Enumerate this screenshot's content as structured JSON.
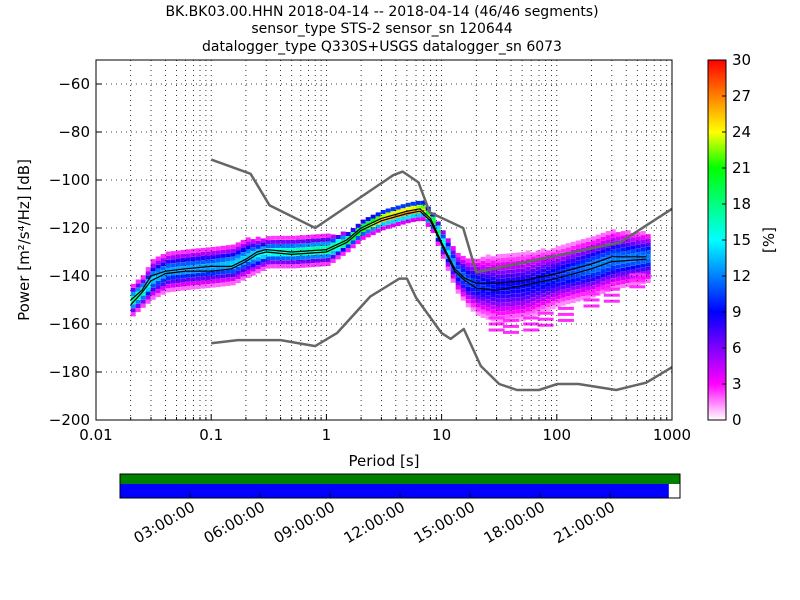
{
  "chart_data": {
    "type": "heatmap",
    "title": {
      "line1": "BK.BK03.00.HHN   2018-04-14 -- 2018-04-14  (46/46 segments)",
      "line2": "sensor_type STS-2 sensor_sn 120644",
      "line3": "datalogger_type Q330S+USGS datalogger_sn 6073"
    },
    "xlabel": "Period [s]",
    "ylabel": "Power [m²/s⁴/Hz] [dB]",
    "xscale": "log",
    "xlim": [
      0.01,
      1000
    ],
    "ylim": [
      -200,
      -50
    ],
    "x_ticks": [
      {
        "value": 0.01,
        "label": "0.01"
      },
      {
        "value": 0.1,
        "label": "0.1"
      },
      {
        "value": 1,
        "label": "1"
      },
      {
        "value": 10,
        "label": "10"
      },
      {
        "value": 100,
        "label": "100"
      },
      {
        "value": 1000,
        "label": "1000"
      }
    ],
    "y_ticks": [
      {
        "value": -60,
        "label": "−60"
      },
      {
        "value": -80,
        "label": "−80"
      },
      {
        "value": -100,
        "label": "−100"
      },
      {
        "value": -120,
        "label": "−120"
      },
      {
        "value": -140,
        "label": "−140"
      },
      {
        "value": -160,
        "label": "−160"
      },
      {
        "value": -180,
        "label": "−180"
      },
      {
        "value": -200,
        "label": "−200"
      }
    ],
    "grid": true,
    "colorbar": {
      "label": "[%]",
      "range": [
        0,
        30
      ],
      "ticks": [
        {
          "value": 0,
          "label": "0"
        },
        {
          "value": 3,
          "label": "3"
        },
        {
          "value": 6,
          "label": "6"
        },
        {
          "value": 9,
          "label": "9"
        },
        {
          "value": 12,
          "label": "12"
        },
        {
          "value": 15,
          "label": "15"
        },
        {
          "value": 18,
          "label": "18"
        },
        {
          "value": 21,
          "label": "21"
        },
        {
          "value": 24,
          "label": "24"
        },
        {
          "value": 27,
          "label": "27"
        },
        {
          "value": 30,
          "label": "30"
        }
      ],
      "colors": [
        "#ffffff",
        "#ff00ff",
        "#8000ff",
        "#0000ff",
        "#0080ff",
        "#00ffff",
        "#00ff80",
        "#00ff00",
        "#ffff00",
        "#ff8000",
        "#ff0000"
      ]
    },
    "noise_models": {
      "high": [
        {
          "period": 0.1,
          "db": -91.5
        },
        {
          "period": 0.22,
          "db": -97.4
        },
        {
          "period": 0.32,
          "db": -110.5
        },
        {
          "period": 0.8,
          "db": -120
        },
        {
          "period": 3.8,
          "db": -98
        },
        {
          "period": 4.6,
          "db": -96.5
        },
        {
          "period": 6.3,
          "db": -101
        },
        {
          "period": 7.9,
          "db": -113.5
        },
        {
          "period": 15.4,
          "db": -120
        },
        {
          "period": 20,
          "db": -138.5
        },
        {
          "period": 354.8,
          "db": -126
        },
        {
          "period": 1000,
          "db": -112
        }
      ],
      "low": [
        {
          "period": 0.1,
          "db": -168
        },
        {
          "period": 0.17,
          "db": -166.7
        },
        {
          "period": 0.4,
          "db": -166.7
        },
        {
          "period": 0.8,
          "db": -169.2
        },
        {
          "period": 1.24,
          "db": -163.7
        },
        {
          "period": 2.4,
          "db": -148.6
        },
        {
          "period": 4.3,
          "db": -141.1
        },
        {
          "period": 5,
          "db": -141.1
        },
        {
          "period": 6,
          "db": -149
        },
        {
          "period": 10,
          "db": -163.8
        },
        {
          "period": 12,
          "db": -166.2
        },
        {
          "period": 15.6,
          "db": -162.1
        },
        {
          "period": 21.9,
          "db": -177.5
        },
        {
          "period": 31.6,
          "db": -185
        },
        {
          "period": 45,
          "db": -187.5
        },
        {
          "period": 70,
          "db": -187.5
        },
        {
          "period": 101,
          "db": -185
        },
        {
          "period": 154,
          "db": -185
        },
        {
          "period": 328,
          "db": -187.5
        },
        {
          "period": 600,
          "db": -184.4
        },
        {
          "period": 1000,
          "db": -178
        }
      ]
    },
    "mean_curve": [
      {
        "period": 0.02,
        "db": -152
      },
      {
        "period": 0.025,
        "db": -147
      },
      {
        "period": 0.03,
        "db": -142
      },
      {
        "period": 0.04,
        "db": -139
      },
      {
        "period": 0.06,
        "db": -138
      },
      {
        "period": 0.1,
        "db": -138
      },
      {
        "period": 0.15,
        "db": -137
      },
      {
        "period": 0.2,
        "db": -134
      },
      {
        "period": 0.25,
        "db": -131
      },
      {
        "period": 0.3,
        "db": -130
      },
      {
        "period": 0.5,
        "db": -131
      },
      {
        "period": 1,
        "db": -130
      },
      {
        "period": 1.5,
        "db": -126
      },
      {
        "period": 2,
        "db": -121
      },
      {
        "period": 3,
        "db": -117
      },
      {
        "period": 5,
        "db": -114
      },
      {
        "period": 6.5,
        "db": -113
      },
      {
        "period": 8,
        "db": -117
      },
      {
        "period": 10,
        "db": -127
      },
      {
        "period": 13,
        "db": -138
      },
      {
        "period": 16,
        "db": -142
      },
      {
        "period": 20,
        "db": -145
      },
      {
        "period": 30,
        "db": -146
      },
      {
        "period": 50,
        "db": -144
      },
      {
        "period": 100,
        "db": -141
      },
      {
        "period": 200,
        "db": -137
      },
      {
        "period": 300,
        "db": -134
      },
      {
        "period": 600,
        "db": -133
      }
    ],
    "mode_curve": [
      {
        "period": 0.02,
        "db": -150
      },
      {
        "period": 0.025,
        "db": -146
      },
      {
        "period": 0.03,
        "db": -140
      },
      {
        "period": 0.04,
        "db": -138
      },
      {
        "period": 0.06,
        "db": -137
      },
      {
        "period": 0.1,
        "db": -136
      },
      {
        "period": 0.15,
        "db": -136
      },
      {
        "period": 0.2,
        "db": -133
      },
      {
        "period": 0.25,
        "db": -130
      },
      {
        "period": 0.3,
        "db": -129
      },
      {
        "period": 0.5,
        "db": -130
      },
      {
        "period": 1,
        "db": -129
      },
      {
        "period": 1.5,
        "db": -125
      },
      {
        "period": 2,
        "db": -120
      },
      {
        "period": 3,
        "db": -116
      },
      {
        "period": 5,
        "db": -113
      },
      {
        "period": 6.5,
        "db": -112
      },
      {
        "period": 8,
        "db": -116
      },
      {
        "period": 10,
        "db": -126
      },
      {
        "period": 13,
        "db": -137
      },
      {
        "period": 16,
        "db": -141
      },
      {
        "period": 20,
        "db": -143
      },
      {
        "period": 30,
        "db": -143
      },
      {
        "period": 50,
        "db": -142
      },
      {
        "period": 100,
        "db": -139
      },
      {
        "period": 200,
        "db": -135
      },
      {
        "period": 300,
        "db": -132
      },
      {
        "period": 600,
        "db": -132
      }
    ],
    "density_bands": [
      {
        "period": 0.02,
        "center": -150,
        "spread": 3,
        "peak": 18
      },
      {
        "period": 0.025,
        "center": -146,
        "spread": 3,
        "peak": 17
      },
      {
        "period": 0.03,
        "center": -141,
        "spread": 4,
        "peak": 14
      },
      {
        "period": 0.04,
        "center": -138,
        "spread": 4,
        "peak": 13
      },
      {
        "period": 0.06,
        "center": -137,
        "spread": 4,
        "peak": 13
      },
      {
        "period": 0.1,
        "center": -136,
        "spread": 4,
        "peak": 13
      },
      {
        "period": 0.15,
        "center": -135,
        "spread": 4,
        "peak": 14
      },
      {
        "period": 0.2,
        "center": -132,
        "spread": 4,
        "peak": 14
      },
      {
        "period": 0.3,
        "center": -130,
        "spread": 3,
        "peak": 16
      },
      {
        "period": 0.5,
        "center": -130,
        "spread": 3,
        "peak": 17
      },
      {
        "period": 1,
        "center": -129,
        "spread": 3,
        "peak": 18
      },
      {
        "period": 1.5,
        "center": -125,
        "spread": 2,
        "peak": 20
      },
      {
        "period": 2,
        "center": -120,
        "spread": 2,
        "peak": 22
      },
      {
        "period": 3,
        "center": -116,
        "spread": 2,
        "peak": 27
      },
      {
        "period": 5,
        "center": -113,
        "spread": 2,
        "peak": 28
      },
      {
        "period": 6.5,
        "center": -112,
        "spread": 2,
        "peak": 26
      },
      {
        "period": 8,
        "center": -117,
        "spread": 2,
        "peak": 22
      },
      {
        "period": 10,
        "center": -127,
        "spread": 3,
        "peak": 16
      },
      {
        "period": 13,
        "center": -138,
        "spread": 4,
        "peak": 12
      },
      {
        "period": 16,
        "center": -142,
        "spread": 5,
        "peak": 11
      },
      {
        "period": 20,
        "center": -144,
        "spread": 6,
        "peak": 10
      },
      {
        "period": 30,
        "center": -145,
        "spread": 7,
        "peak": 9
      },
      {
        "period": 50,
        "center": -144,
        "spread": 7,
        "peak": 9
      },
      {
        "period": 100,
        "center": -140,
        "spread": 6,
        "peak": 10
      },
      {
        "period": 200,
        "center": -136,
        "spread": 6,
        "peak": 12
      },
      {
        "period": 300,
        "center": -133,
        "spread": 6,
        "peak": 12
      },
      {
        "period": 600,
        "center": -132,
        "spread": 5,
        "peak": 12
      }
    ],
    "outlier_band": [
      {
        "period": 30,
        "db": -160
      },
      {
        "period": 40,
        "db": -161
      },
      {
        "period": 60,
        "db": -160
      },
      {
        "period": 80,
        "db": -158
      },
      {
        "period": 120,
        "db": -156
      },
      {
        "period": 200,
        "db": -150
      },
      {
        "period": 300,
        "db": -148
      },
      {
        "period": 500,
        "db": -142
      }
    ],
    "timeline": {
      "labels": [
        "03:00:00",
        "06:00:00",
        "09:00:00",
        "12:00:00",
        "15:00:00",
        "18:00:00",
        "21:00:00"
      ],
      "coverage_fraction": 0.98
    }
  }
}
